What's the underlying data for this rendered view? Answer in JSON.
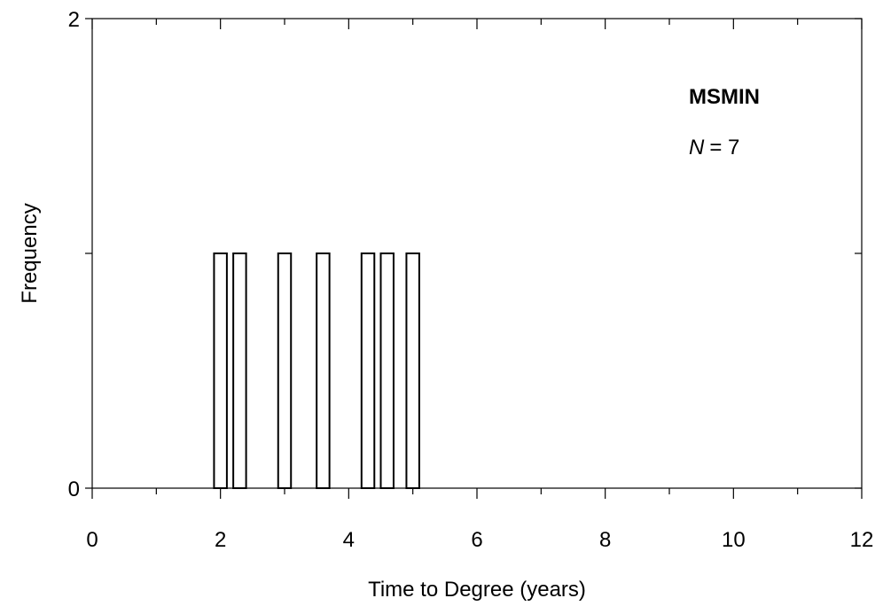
{
  "chart_data": {
    "type": "bar",
    "title": "",
    "xlabel": "Time to Degree (years)",
    "ylabel": "Frequency",
    "xlim": [
      0,
      12
    ],
    "ylim": [
      0,
      2
    ],
    "x_ticks": [
      "0",
      "2",
      "4",
      "6",
      "8",
      "10",
      "12"
    ],
    "y_ticks": [
      "0",
      "2"
    ],
    "bar_width": 0.2,
    "x": [
      2.0,
      2.3,
      3.0,
      3.6,
      4.3,
      4.6,
      5.0
    ],
    "values": [
      1,
      1,
      1,
      1,
      1,
      1,
      1
    ],
    "annotation": {
      "group": "MSMIN",
      "n_label": "N",
      "n_equals": "= 7"
    },
    "grid": false,
    "colors": {
      "stroke": "#000000",
      "fill": "#ffffff"
    }
  }
}
